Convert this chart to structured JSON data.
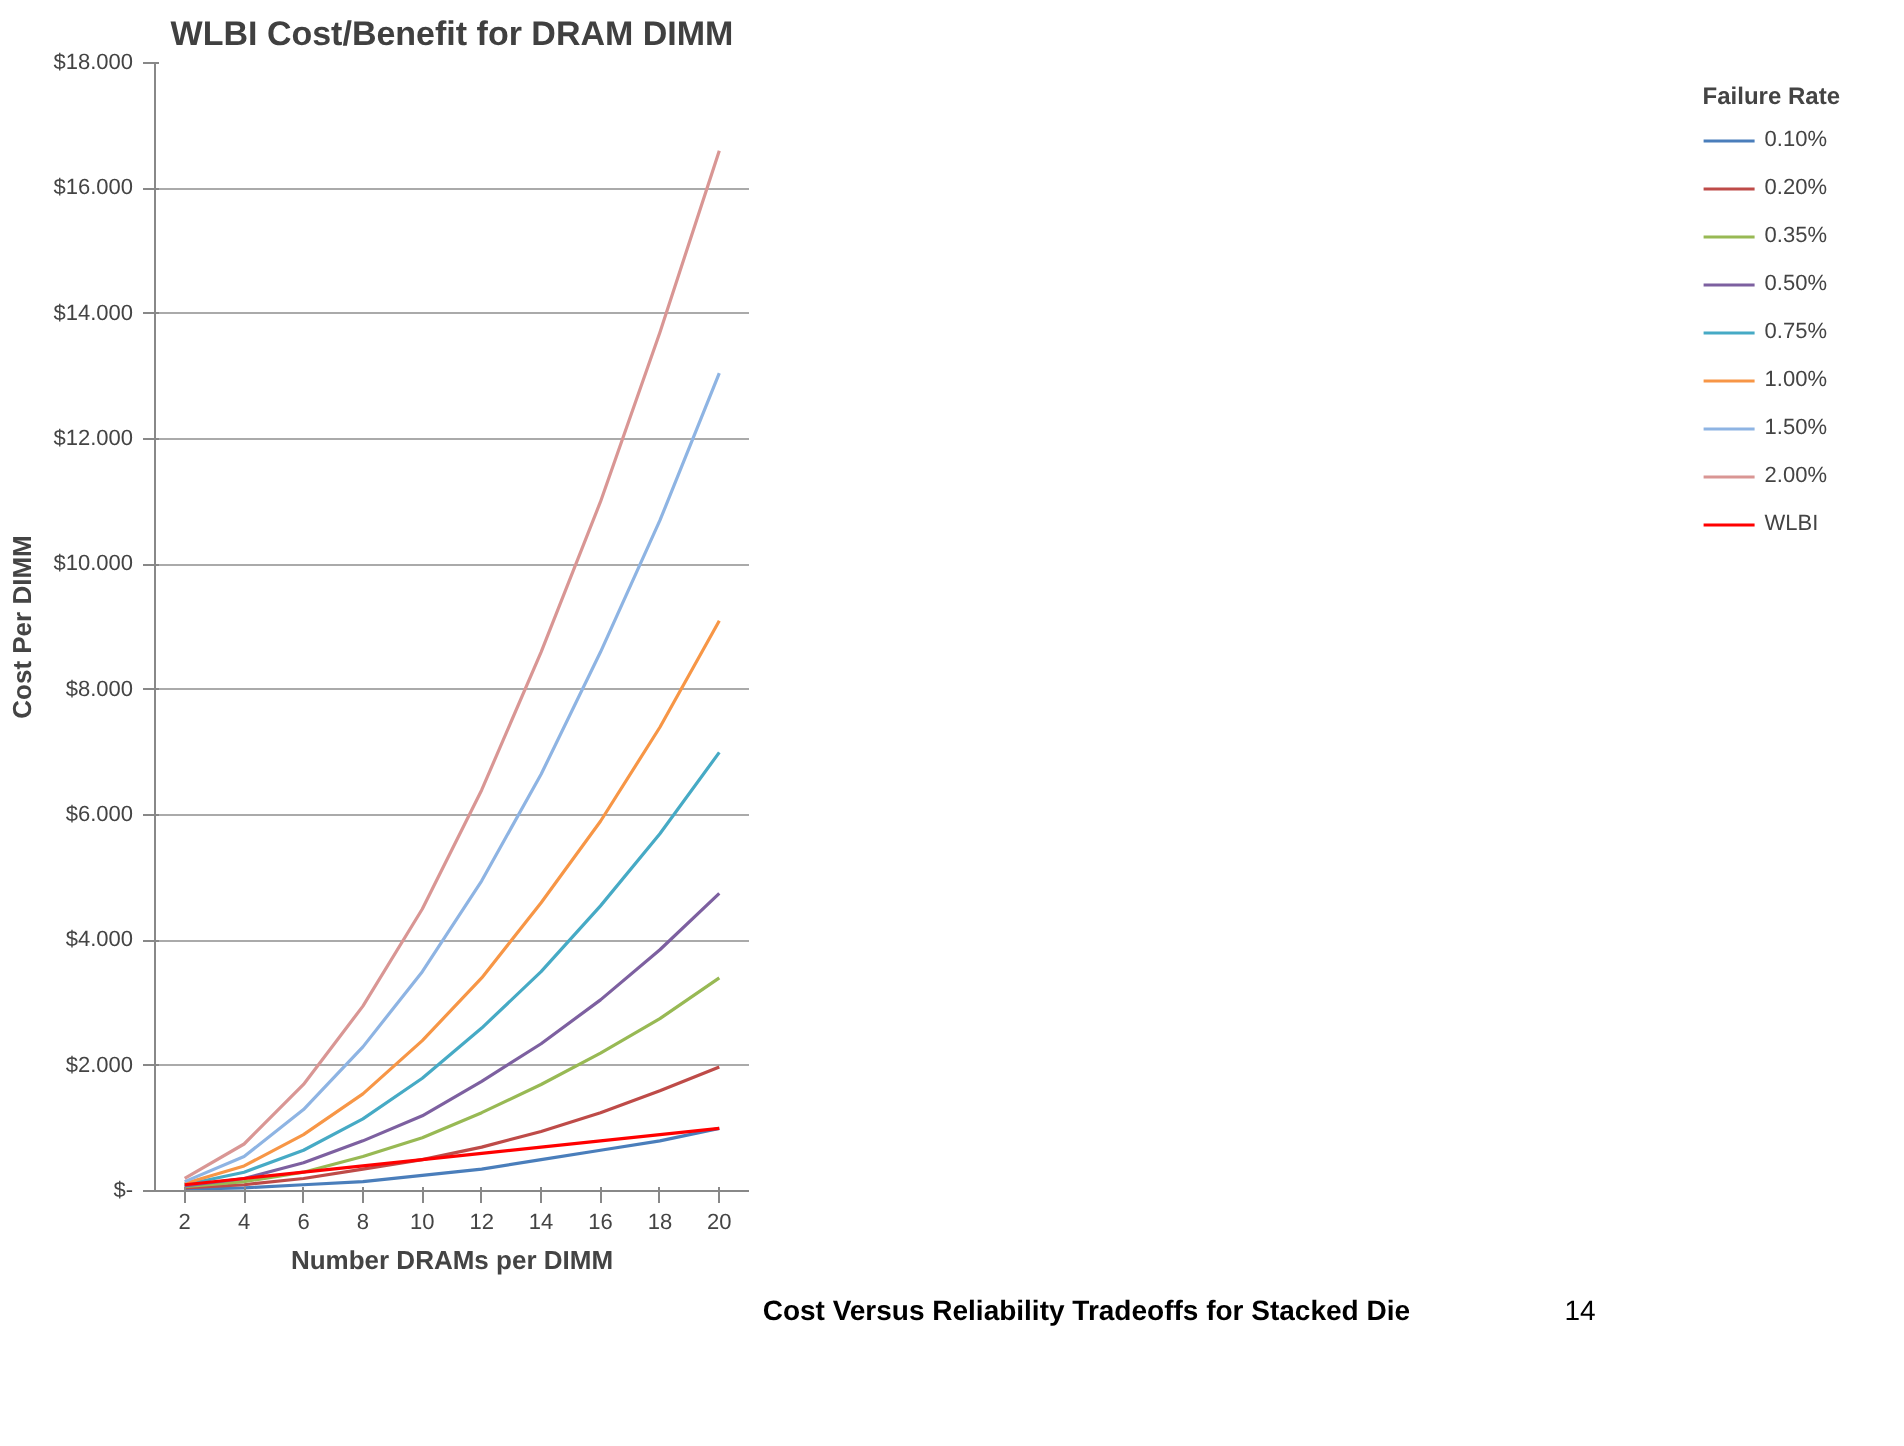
{
  "chart_data": {
    "type": "line",
    "title": "WLBI Cost/Benefit for DRAM DIMM",
    "xlabel": "Number DRAMs per DIMM",
    "ylabel": "Cost Per DIMM",
    "legend_title": "Failure Rate",
    "annotations": [
      "Cost Versus Reliability Tradeoffs for Stacked Die",
      "14"
    ],
    "categories": [
      "2",
      "4",
      "6",
      "8",
      "10",
      "12",
      "14",
      "16",
      "18",
      "20"
    ],
    "series": [
      {
        "name": "0.10%",
        "color": "#4a7ebb",
        "values": [
          0.03,
          0.05,
          0.1,
          0.15,
          0.25,
          0.35,
          0.5,
          0.65,
          0.8,
          1.0
        ]
      },
      {
        "name": "0.20%",
        "color": "#be4b48",
        "values": [
          0.05,
          0.1,
          0.2,
          0.35,
          0.5,
          0.7,
          0.95,
          1.25,
          1.6,
          1.98
        ]
      },
      {
        "name": "0.35%",
        "color": "#98b954",
        "values": [
          0.07,
          0.15,
          0.3,
          0.55,
          0.85,
          1.25,
          1.7,
          2.2,
          2.75,
          3.4
        ]
      },
      {
        "name": "0.50%",
        "color": "#7d60a0",
        "values": [
          0.08,
          0.2,
          0.45,
          0.8,
          1.2,
          1.75,
          2.35,
          3.05,
          3.85,
          4.75
        ]
      },
      {
        "name": "0.75%",
        "color": "#46aac5",
        "values": [
          0.1,
          0.3,
          0.65,
          1.15,
          1.8,
          2.6,
          3.5,
          4.55,
          5.7,
          7.0
        ]
      },
      {
        "name": "1.00%",
        "color": "#f79646",
        "values": [
          0.12,
          0.4,
          0.9,
          1.55,
          2.4,
          3.4,
          4.6,
          5.9,
          7.4,
          9.1
        ]
      },
      {
        "name": "1.50%",
        "color": "#8eb4e3",
        "values": [
          0.15,
          0.55,
          1.3,
          2.3,
          3.5,
          4.95,
          6.65,
          8.6,
          10.7,
          13.05
        ]
      },
      {
        "name": "2.00%",
        "color": "#d99694",
        "values": [
          0.2,
          0.75,
          1.7,
          2.95,
          4.5,
          6.4,
          8.6,
          11.0,
          13.7,
          16.6
        ]
      },
      {
        "name": "WLBI",
        "color": "#ff0000",
        "values": [
          0.1,
          0.2,
          0.3,
          0.4,
          0.5,
          0.6,
          0.7,
          0.8,
          0.9,
          1.0
        ]
      }
    ],
    "ylim": [
      0,
      18
    ],
    "yticks": [
      {
        "value": 0,
        "label": "$-"
      },
      {
        "value": 2,
        "label": "$2.000"
      },
      {
        "value": 4,
        "label": "$4.000"
      },
      {
        "value": 6,
        "label": "$6.000"
      },
      {
        "value": 8,
        "label": "$8.000"
      },
      {
        "value": 10,
        "label": "$10.000"
      },
      {
        "value": 12,
        "label": "$12.000"
      },
      {
        "value": 14,
        "label": "$14.000"
      },
      {
        "value": 16,
        "label": "$16.000"
      },
      {
        "value": 18,
        "label": "$18.000"
      }
    ],
    "grid": "y",
    "legend": "right",
    "marker": "none",
    "line_style": "solid"
  }
}
